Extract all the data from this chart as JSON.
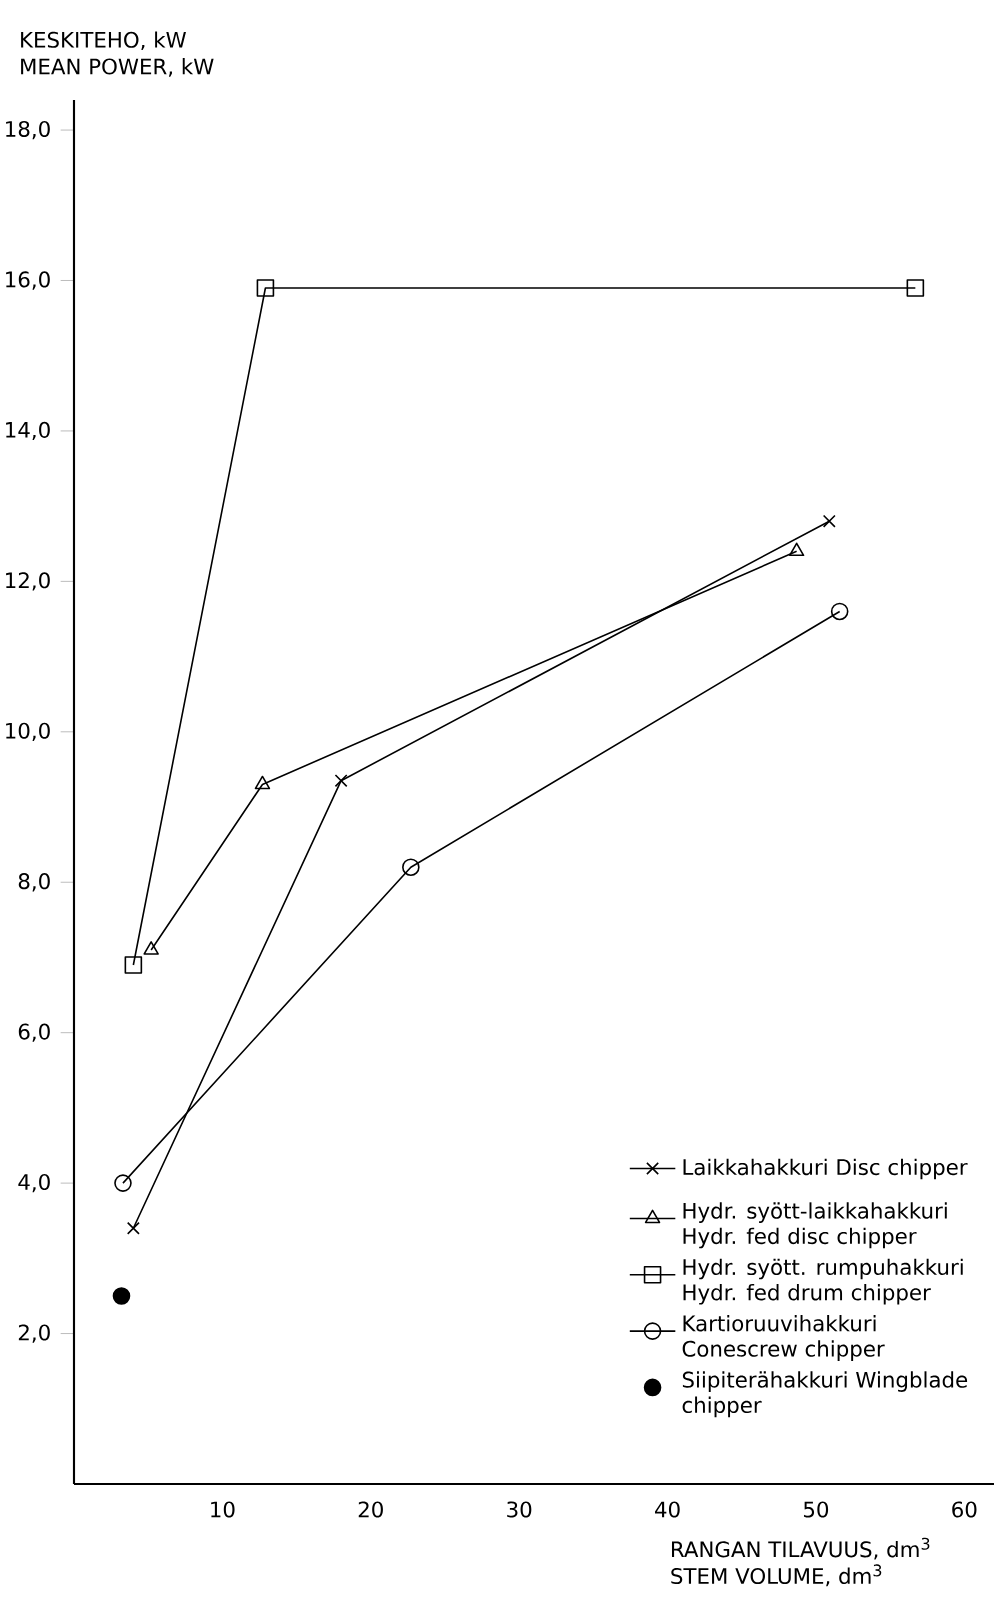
{
  "chart_data": {
    "type": "line",
    "ylabel": "KESKITEHO, kW MEAN POWER, kW",
    "xlabel": "RANGAN TILAVUUS, dm$^{3}$ STEM VOLUME, dm$^{3}$",
    "xlim": [
      0,
      62
    ],
    "ylim": [
      0,
      18.4
    ],
    "xticks": [
      10,
      20,
      30,
      40,
      50,
      60
    ],
    "yticks": [
      {
        "value": 2,
        "label": "2,0"
      },
      {
        "value": 4,
        "label": "4,0"
      },
      {
        "value": 6,
        "label": "6,0"
      },
      {
        "value": 8,
        "label": "8,0"
      },
      {
        "value": 10,
        "label": "10,0"
      },
      {
        "value": 12,
        "label": "12,0"
      },
      {
        "value": 14,
        "label": "14,0"
      },
      {
        "value": 16,
        "label": "16,0"
      },
      {
        "value": 18,
        "label": "18,0"
      }
    ],
    "grid": false,
    "legend": "bottom right",
    "series": [
      {
        "name": "Laikkahakkuri Disc chipper",
        "color": "#000000",
        "marker": "cross",
        "x": [
          4,
          18,
          50.9
        ],
        "values": [
          3.4,
          9.35,
          12.8
        ]
      },
      {
        "name": "Hydr. syött-laikkahakkuri Hydr. fed disc chipper",
        "color": "#000000",
        "marker": "triangle",
        "x": [
          5.2,
          12.7,
          48.7
        ],
        "values": [
          7.1,
          9.3,
          12.4
        ]
      },
      {
        "name": "Hydr. syött. rumpuhakkuri Hydr. fed drum chipper",
        "color": "#000000",
        "marker": "square",
        "x": [
          4.0,
          12.9,
          56.7
        ],
        "values": [
          6.9,
          15.9,
          15.9
        ]
      },
      {
        "name": "Kartioruuvihakkuri Conescrew chipper",
        "color": "#000000",
        "marker": "circle",
        "x": [
          3.3,
          22.7,
          51.6
        ],
        "values": [
          4.0,
          8.2,
          11.6
        ]
      },
      {
        "name": "Siipiterähakkuri Wingblade chipper",
        "type": "scatter",
        "color": "#000000",
        "marker": "circle",
        "x": [
          3.2
        ],
        "values": [
          2.5
        ]
      }
    ]
  }
}
